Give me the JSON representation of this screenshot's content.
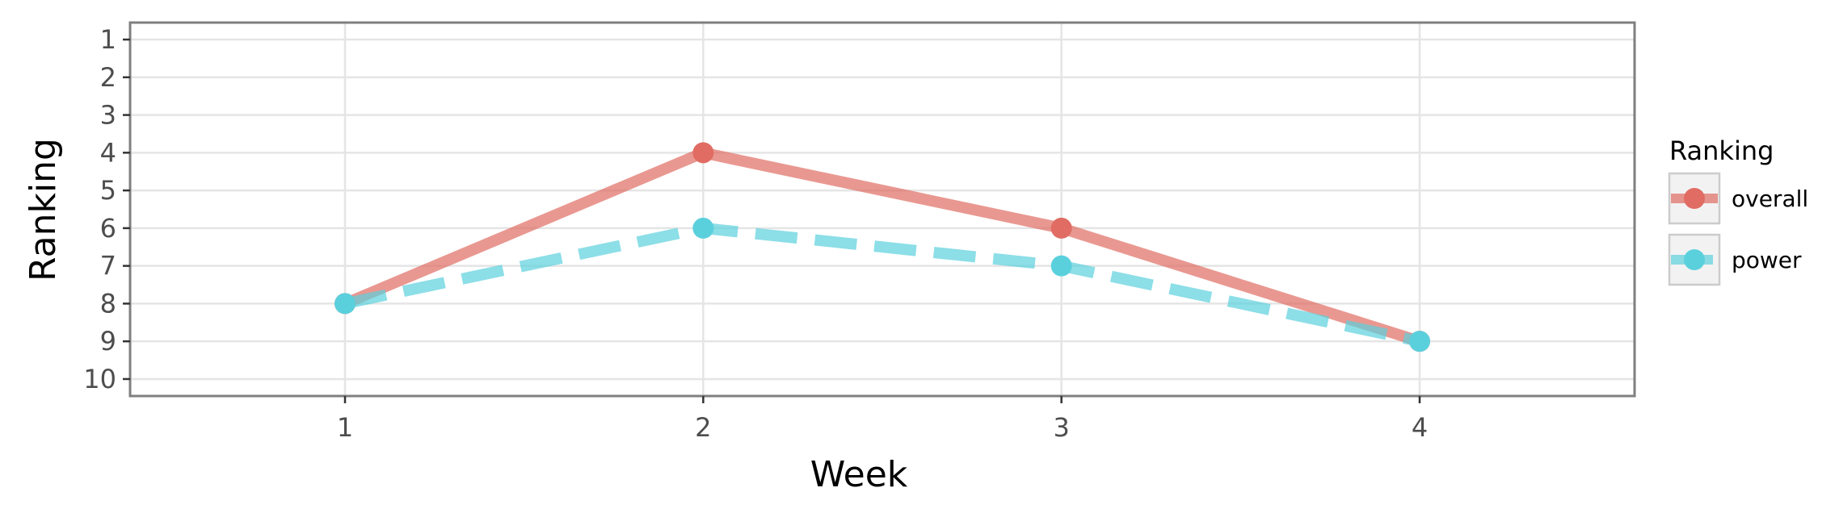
{
  "chart_data": {
    "type": "line",
    "xlabel": "Week",
    "ylabel": "Ranking",
    "x": [
      1,
      2,
      3,
      4
    ],
    "xlim": [
      0.4,
      4.6
    ],
    "ylim": [
      10.45,
      0.55
    ],
    "y_reversed": true,
    "x_ticks": [
      "1",
      "2",
      "3",
      "4"
    ],
    "y_ticks": [
      "1",
      "2",
      "3",
      "4",
      "5",
      "6",
      "7",
      "8",
      "9",
      "10"
    ],
    "grid": true,
    "legend": {
      "title": "Ranking",
      "placement": "right"
    },
    "series": [
      {
        "name": "overall",
        "values": [
          8,
          4,
          6,
          9
        ],
        "color": "#E06C63",
        "style": "solid"
      },
      {
        "name": "power",
        "values": [
          8,
          6,
          7,
          9
        ],
        "color": "#5BD0DD",
        "style": "dashed"
      }
    ]
  }
}
